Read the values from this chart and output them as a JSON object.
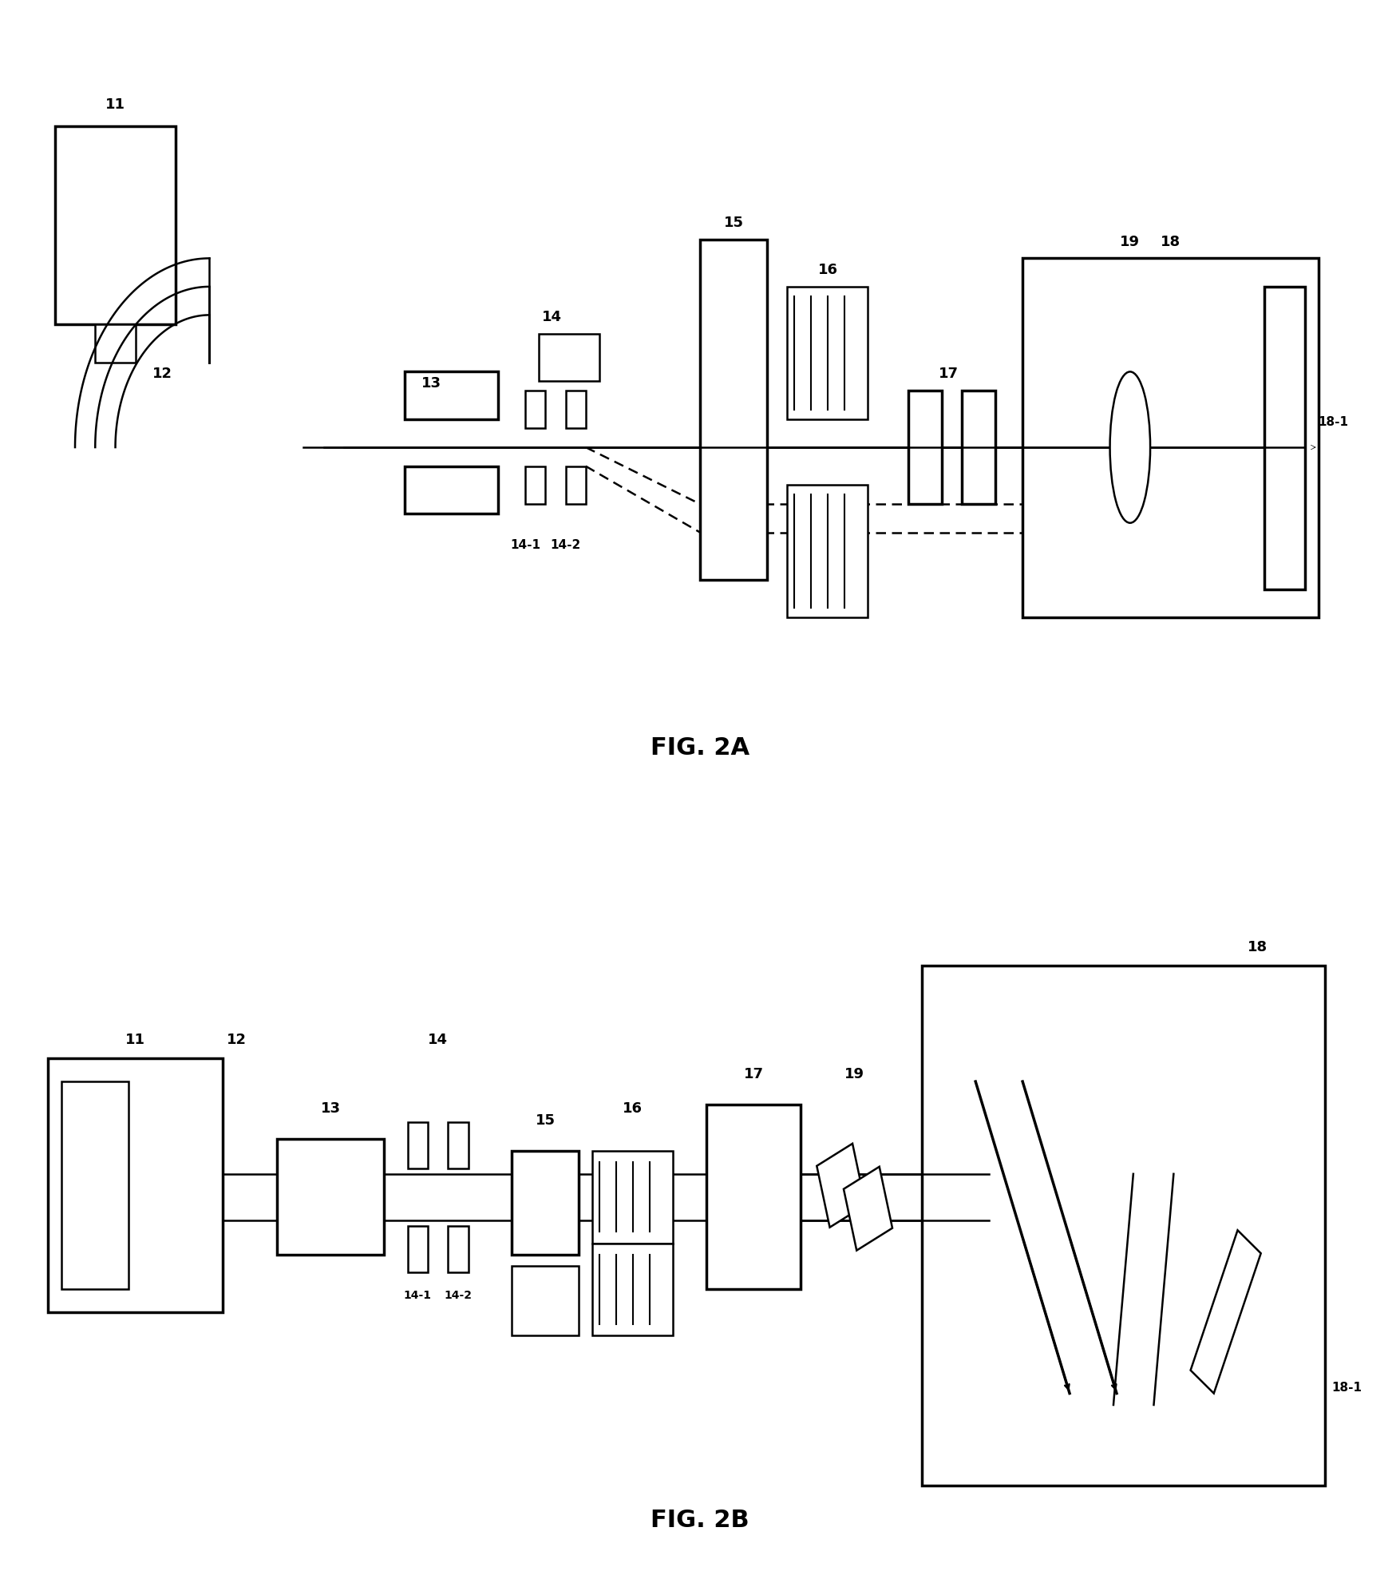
{
  "bg": "white",
  "lc": "black",
  "lw": 1.8,
  "lwt": 2.5,
  "fig2a_label": "FIG. 2A",
  "fig2b_label": "FIG. 2B",
  "label_fs": 22,
  "num_fs": 13
}
